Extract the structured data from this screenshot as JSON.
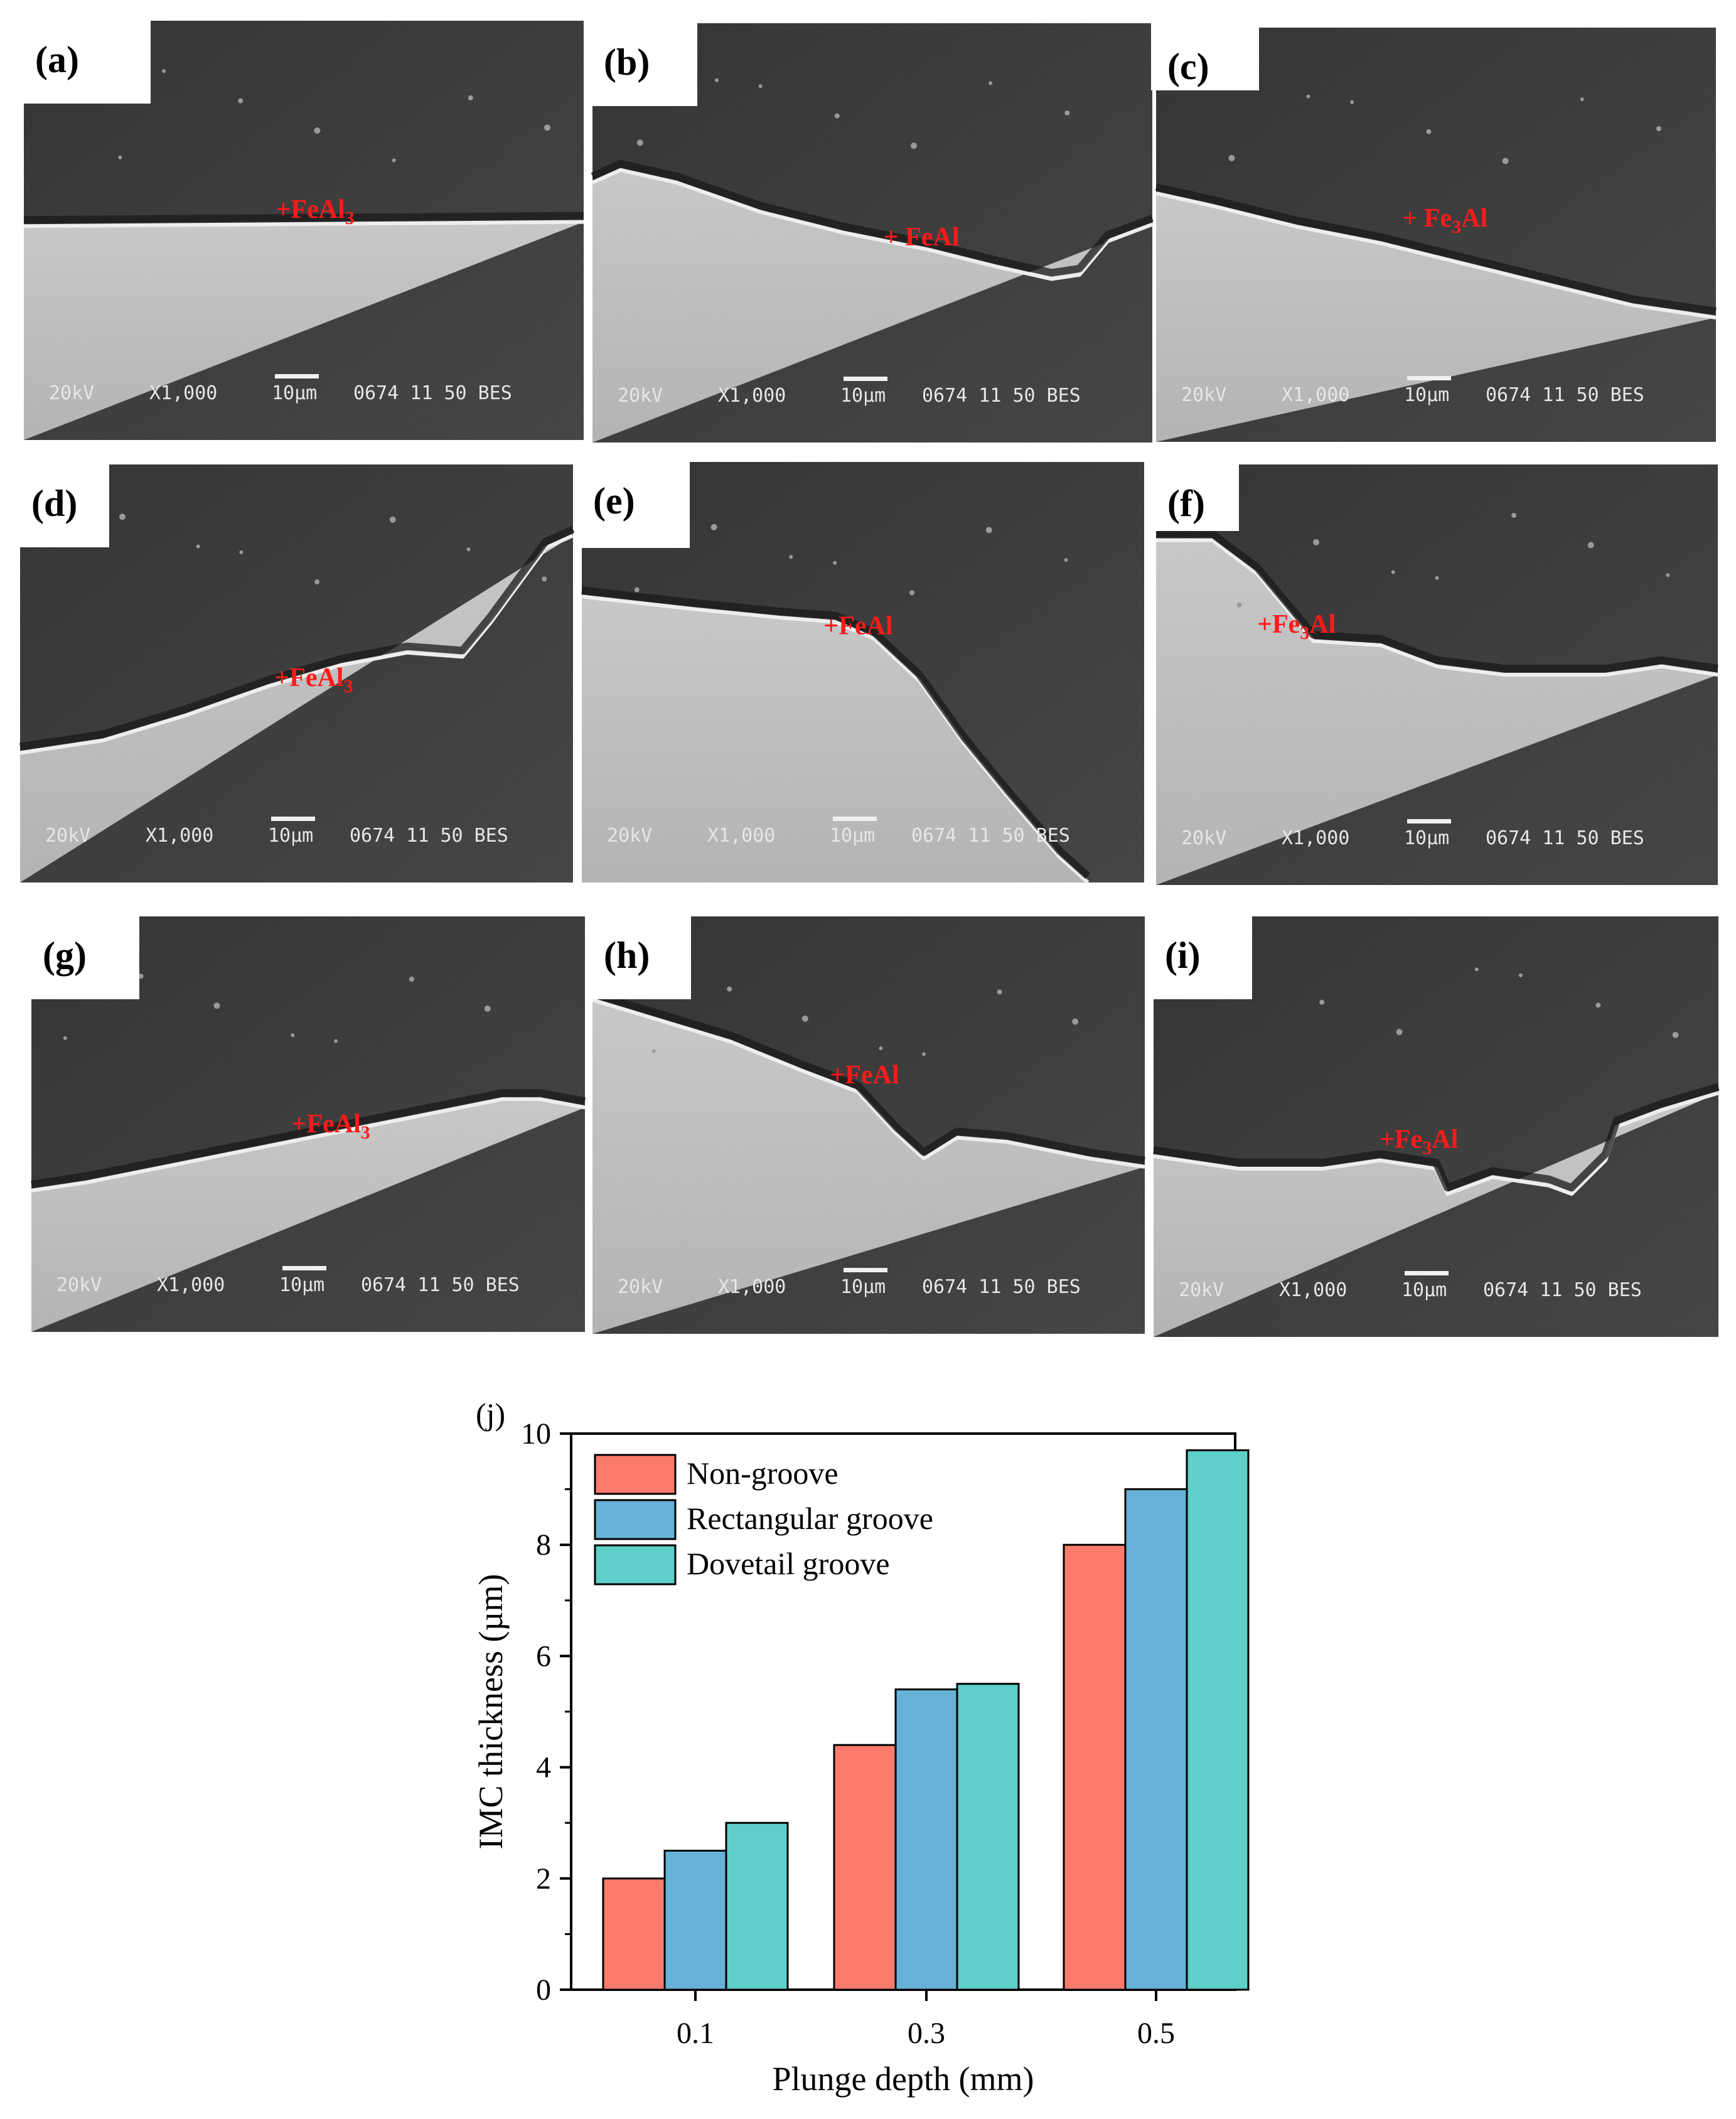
{
  "panels": [
    {
      "id": "a",
      "label": "(a)",
      "phase": "+FeAl",
      "sub": "3",
      "style": "flat"
    },
    {
      "id": "b",
      "label": "(b)",
      "phase": "+ FeAl",
      "sub": "",
      "style": "wavy"
    },
    {
      "id": "c",
      "label": "(c)",
      "phase": "+ Fe",
      "sub": "3",
      "phase_tail": "Al",
      "style": "slope"
    },
    {
      "id": "d",
      "label": "(d)",
      "phase": "+FeAl",
      "sub": "3",
      "style": "hill"
    },
    {
      "id": "e",
      "label": "(e)",
      "phase": "+FeAl",
      "sub": "",
      "style": "cliff"
    },
    {
      "id": "f",
      "label": "(f)",
      "phase": "+Fe",
      "sub": "3",
      "phase_tail": "Al",
      "style": "step"
    },
    {
      "id": "g",
      "label": "(g)",
      "phase": "+FeAl",
      "sub": "3",
      "style": "rise"
    },
    {
      "id": "h",
      "label": "(h)",
      "phase": "+FeAl",
      "sub": "",
      "style": "vee"
    },
    {
      "id": "i",
      "label": "(i)",
      "phase": "+Fe",
      "sub": "3",
      "phase_tail": "Al",
      "style": "rough"
    }
  ],
  "sem_info": {
    "kv": "20kV",
    "mag": "X1,000",
    "scale": "10µm",
    "tail": "0674 11 50 BES"
  },
  "colors": {
    "non_groove": "#fa7b6b",
    "rectangular": "#66b2d6",
    "dovetail": "#5ecfc9",
    "phase_text": "#ff1a1a"
  },
  "chart_data": {
    "type": "bar",
    "panel_label": "(j)",
    "categories": [
      "0.1",
      "0.3",
      "0.5"
    ],
    "series": [
      {
        "name": "Non-groove",
        "values": [
          2.0,
          4.4,
          8.0
        ]
      },
      {
        "name": "Rectangular groove",
        "values": [
          2.5,
          5.4,
          9.0
        ]
      },
      {
        "name": "Dovetail groove",
        "values": [
          3.0,
          5.5,
          9.7
        ]
      }
    ],
    "yticks": [
      "0",
      "2",
      "4",
      "6",
      "8",
      "10"
    ],
    "xlabel": "Plunge depth (mm)",
    "ylabel": "IMC thickness (µm)",
    "ylim": [
      0,
      10
    ],
    "legend": "top-left"
  }
}
